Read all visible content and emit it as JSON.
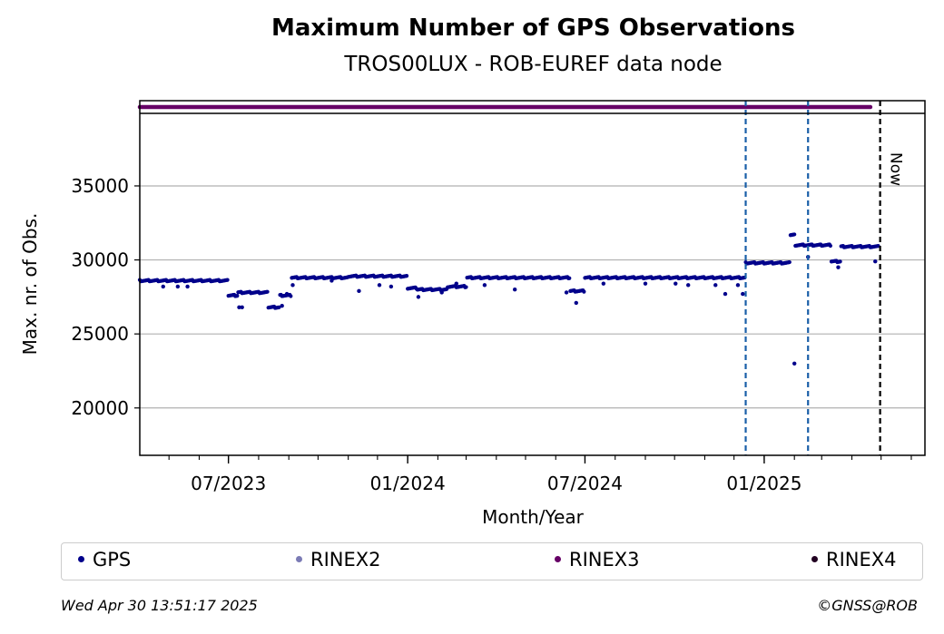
{
  "chart_data": {
    "type": "scatter",
    "title": "Maximum Number of GPS Observations",
    "subtitle": "TROS00LUX - ROB-EUREF data node",
    "xlabel": "Month/Year",
    "ylabel": "Max. nr. of Obs.",
    "x_range": [
      "2023-04-01",
      "2025-06-15"
    ],
    "ylim": [
      16800,
      39900
    ],
    "y_ticks": [
      20000,
      25000,
      30000,
      35000
    ],
    "x_ticks": [
      {
        "date": "2023-07-01",
        "label": "07/2023"
      },
      {
        "date": "2024-01-01",
        "label": "01/2024"
      },
      {
        "date": "2024-07-01",
        "label": "07/2024"
      },
      {
        "date": "2025-01-01",
        "label": "01/2025"
      }
    ],
    "grid": "horizontal",
    "vertical_markers": [
      {
        "date": "2024-12-13",
        "style": "dashed",
        "color": "#1a5fa8"
      },
      {
        "date": "2025-02-15",
        "style": "dashed",
        "color": "#1a5fa8"
      },
      {
        "date": "2025-04-30",
        "style": "dashed",
        "color": "#000000",
        "label": "Now"
      }
    ],
    "rinex_band": {
      "series": "RINEX3",
      "from": "2023-04-01",
      "to": "2025-04-20"
    },
    "series": [
      {
        "name": "GPS",
        "color": "#00008b",
        "segments": [
          {
            "from": "2023-04-01",
            "to": "2023-06-30",
            "value": 28600
          },
          {
            "from": "2023-07-01",
            "to": "2023-07-10",
            "value": 27600
          },
          {
            "from": "2023-07-11",
            "to": "2023-08-10",
            "value": 27800
          },
          {
            "from": "2023-08-11",
            "to": "2023-08-22",
            "value": 26800
          },
          {
            "from": "2023-08-23",
            "to": "2023-09-03",
            "value": 27600
          },
          {
            "from": "2023-09-04",
            "to": "2023-10-31",
            "value": 28800
          },
          {
            "from": "2023-11-01",
            "to": "2023-12-31",
            "value": 28900
          },
          {
            "from": "2024-01-01",
            "to": "2024-01-10",
            "value": 28100
          },
          {
            "from": "2024-01-11",
            "to": "2024-02-10",
            "value": 28000
          },
          {
            "from": "2024-02-11",
            "to": "2024-03-01",
            "value": 28200
          },
          {
            "from": "2024-03-02",
            "to": "2024-06-15",
            "value": 28800
          },
          {
            "from": "2024-06-16",
            "to": "2024-06-30",
            "value": 27900
          },
          {
            "from": "2024-07-01",
            "to": "2024-12-12",
            "value": 28800
          },
          {
            "from": "2024-12-13",
            "to": "2025-01-27",
            "value": 29800
          },
          {
            "from": "2025-01-28",
            "to": "2025-02-01",
            "value": 31700
          },
          {
            "from": "2025-02-02",
            "to": "2025-03-10",
            "value": 31000
          },
          {
            "from": "2025-03-11",
            "to": "2025-03-20",
            "value": 29900
          },
          {
            "from": "2025-03-21",
            "to": "2025-04-28",
            "value": 30900
          }
        ],
        "outliers": [
          {
            "x": "2023-04-25",
            "y": 28200
          },
          {
            "x": "2023-05-10",
            "y": 28200
          },
          {
            "x": "2023-05-20",
            "y": 28200
          },
          {
            "x": "2023-07-12",
            "y": 26800
          },
          {
            "x": "2023-07-15",
            "y": 26800
          },
          {
            "x": "2023-08-25",
            "y": 26900
          },
          {
            "x": "2023-08-30",
            "y": 27700
          },
          {
            "x": "2023-09-05",
            "y": 28300
          },
          {
            "x": "2023-10-15",
            "y": 28600
          },
          {
            "x": "2023-11-12",
            "y": 27900
          },
          {
            "x": "2023-12-03",
            "y": 28300
          },
          {
            "x": "2023-12-15",
            "y": 28200
          },
          {
            "x": "2024-01-12",
            "y": 27500
          },
          {
            "x": "2024-02-05",
            "y": 27800
          },
          {
            "x": "2024-02-20",
            "y": 28400
          },
          {
            "x": "2024-03-20",
            "y": 28300
          },
          {
            "x": "2024-04-20",
            "y": 28000
          },
          {
            "x": "2024-06-12",
            "y": 27800
          },
          {
            "x": "2024-06-22",
            "y": 27100
          },
          {
            "x": "2024-07-20",
            "y": 28400
          },
          {
            "x": "2024-09-01",
            "y": 28400
          },
          {
            "x": "2024-10-02",
            "y": 28400
          },
          {
            "x": "2024-10-15",
            "y": 28300
          },
          {
            "x": "2024-11-12",
            "y": 28300
          },
          {
            "x": "2024-11-22",
            "y": 27700
          },
          {
            "x": "2024-12-05",
            "y": 28300
          },
          {
            "x": "2024-12-10",
            "y": 27700
          },
          {
            "x": "2025-02-01",
            "y": 23000
          },
          {
            "x": "2025-02-15",
            "y": 30200
          },
          {
            "x": "2025-03-18",
            "y": 29500
          },
          {
            "x": "2025-04-25",
            "y": 29900
          }
        ]
      },
      {
        "name": "RINEX2",
        "color": "#7b7bb5"
      },
      {
        "name": "RINEX3",
        "color": "#660066"
      },
      {
        "name": "RINEX4",
        "color": "#220022"
      }
    ]
  },
  "footer": {
    "timestamp": "Wed Apr 30 13:51:17 2025",
    "credit": "©GNSS@ROB"
  }
}
